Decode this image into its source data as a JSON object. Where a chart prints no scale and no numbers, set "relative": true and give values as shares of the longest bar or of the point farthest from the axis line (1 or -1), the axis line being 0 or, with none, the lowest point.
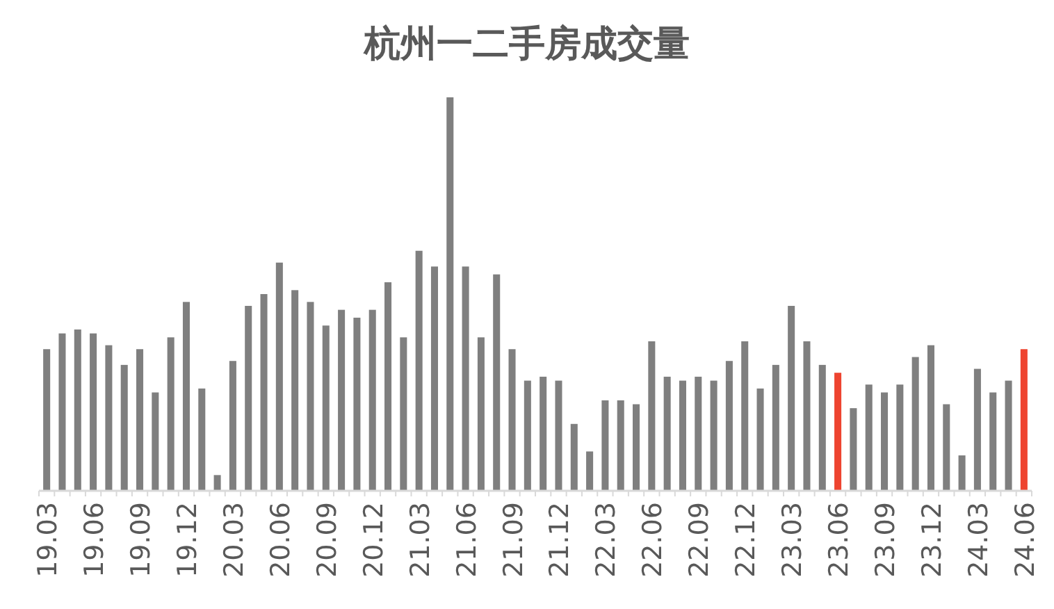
{
  "chart_data": {
    "type": "bar",
    "title": "杭州一二手房成交量",
    "relative": true,
    "categories": [
      "19.03",
      null,
      null,
      "19.06",
      null,
      null,
      "19.09",
      null,
      null,
      "19.12",
      null,
      null,
      "20.03",
      null,
      null,
      "20.06",
      null,
      null,
      "20.09",
      null,
      null,
      "20.12",
      null,
      null,
      "21.03",
      null,
      null,
      "21.06",
      null,
      null,
      "21.09",
      null,
      null,
      "21.12",
      null,
      null,
      "22.03",
      null,
      null,
      "22.06",
      null,
      null,
      "22.09",
      null,
      null,
      "22.12",
      null,
      null,
      "23.03",
      null,
      null,
      "23.06",
      null,
      null,
      "23.09",
      null,
      null,
      "23.12",
      null,
      null,
      "24.03",
      null,
      null,
      "24.06"
    ],
    "values": [
      0.36,
      0.4,
      0.41,
      0.4,
      0.37,
      0.32,
      0.36,
      0.25,
      0.39,
      0.48,
      0.26,
      0.04,
      0.33,
      0.47,
      0.5,
      0.58,
      0.51,
      0.48,
      0.42,
      0.46,
      0.44,
      0.46,
      0.53,
      0.39,
      0.61,
      0.57,
      1,
      0.57,
      0.39,
      0.55,
      0.36,
      0.28,
      0.29,
      0.28,
      0.17,
      0.1,
      0.23,
      0.23,
      0.22,
      0.38,
      0.29,
      0.28,
      0.29,
      0.28,
      0.33,
      0.38,
      0.26,
      0.32,
      0.47,
      0.38,
      0.32,
      0.3,
      0.21,
      0.27,
      0.25,
      0.27,
      0.34,
      0.37,
      0.22,
      0.09,
      0.31,
      0.25,
      0.28,
      0.36
    ],
    "colors": [
      "#7f7f7f",
      "#7f7f7f",
      "#7f7f7f",
      "#7f7f7f",
      "#7f7f7f",
      "#7f7f7f",
      "#7f7f7f",
      "#7f7f7f",
      "#7f7f7f",
      "#7f7f7f",
      "#7f7f7f",
      "#7f7f7f",
      "#7f7f7f",
      "#7f7f7f",
      "#7f7f7f",
      "#7f7f7f",
      "#7f7f7f",
      "#7f7f7f",
      "#7f7f7f",
      "#7f7f7f",
      "#7f7f7f",
      "#7f7f7f",
      "#7f7f7f",
      "#7f7f7f",
      "#7f7f7f",
      "#7f7f7f",
      "#7f7f7f",
      "#7f7f7f",
      "#7f7f7f",
      "#7f7f7f",
      "#7f7f7f",
      "#7f7f7f",
      "#7f7f7f",
      "#7f7f7f",
      "#7f7f7f",
      "#7f7f7f",
      "#7f7f7f",
      "#7f7f7f",
      "#7f7f7f",
      "#7f7f7f",
      "#7f7f7f",
      "#7f7f7f",
      "#7f7f7f",
      "#7f7f7f",
      "#7f7f7f",
      "#7f7f7f",
      "#7f7f7f",
      "#7f7f7f",
      "#7f7f7f",
      "#7f7f7f",
      "#7f7f7f",
      "#ee4430",
      "#7f7f7f",
      "#7f7f7f",
      "#7f7f7f",
      "#7f7f7f",
      "#7f7f7f",
      "#7f7f7f",
      "#7f7f7f",
      "#7f7f7f",
      "#7f7f7f",
      "#7f7f7f",
      "#7f7f7f",
      "#ee4430"
    ]
  }
}
